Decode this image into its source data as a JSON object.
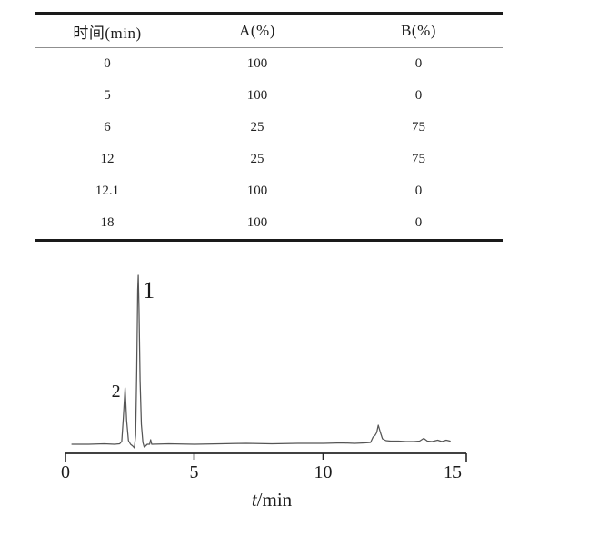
{
  "table": {
    "columns": [
      "时间(min)",
      "A(%)",
      "B(%)"
    ],
    "rows": [
      [
        "0",
        "100",
        "0"
      ],
      [
        "5",
        "100",
        "0"
      ],
      [
        "6",
        "25",
        "75"
      ],
      [
        "12",
        "25",
        "75"
      ],
      [
        "12.1",
        "100",
        "0"
      ],
      [
        "18",
        "100",
        "0"
      ]
    ]
  },
  "chart_data": {
    "type": "line",
    "title": "",
    "xlabel": "t/min",
    "xlabel_italic": "t",
    "xlabel_rest": "/min",
    "ylabel": "",
    "xlim": [
      0,
      15
    ],
    "grid": false,
    "x_ticks": [
      0,
      5,
      10,
      15
    ],
    "x_tick_labels": [
      "0",
      "5",
      "10",
      "15"
    ],
    "peaks": [
      {
        "label": "1",
        "t": 2.82,
        "height": 186
      },
      {
        "label": "2",
        "t": 2.31,
        "height": 62
      }
    ],
    "trace": [
      [
        0.25,
        0
      ],
      [
        0.9,
        0
      ],
      [
        1.5,
        0.5
      ],
      [
        1.9,
        0
      ],
      [
        2.1,
        0.5
      ],
      [
        2.18,
        3
      ],
      [
        2.24,
        28
      ],
      [
        2.31,
        62
      ],
      [
        2.37,
        26
      ],
      [
        2.44,
        4
      ],
      [
        2.52,
        0
      ],
      [
        2.61,
        -2
      ],
      [
        2.67,
        -4
      ],
      [
        2.72,
        10
      ],
      [
        2.76,
        80
      ],
      [
        2.8,
        170
      ],
      [
        2.82,
        186
      ],
      [
        2.85,
        150
      ],
      [
        2.89,
        70
      ],
      [
        2.94,
        22
      ],
      [
        3.0,
        2
      ],
      [
        3.05,
        -3
      ],
      [
        3.1,
        -2
      ],
      [
        3.17,
        0
      ],
      [
        3.26,
        0
      ],
      [
        3.3,
        5
      ],
      [
        3.34,
        0
      ],
      [
        4.0,
        0.5
      ],
      [
        5.0,
        0
      ],
      [
        6.0,
        0.5
      ],
      [
        7.0,
        1
      ],
      [
        8.0,
        0.5
      ],
      [
        9.0,
        1
      ],
      [
        10.0,
        1
      ],
      [
        10.7,
        1.5
      ],
      [
        11.2,
        1
      ],
      [
        11.6,
        1.5
      ],
      [
        11.82,
        2
      ],
      [
        11.92,
        8
      ],
      [
        12.0,
        10
      ],
      [
        12.06,
        13
      ],
      [
        12.12,
        21
      ],
      [
        12.2,
        13
      ],
      [
        12.28,
        6
      ],
      [
        12.42,
        4
      ],
      [
        12.6,
        3.5
      ],
      [
        12.9,
        3.5
      ],
      [
        13.2,
        3
      ],
      [
        13.5,
        3
      ],
      [
        13.72,
        3.5
      ],
      [
        13.88,
        6.5
      ],
      [
        14.02,
        3.5
      ],
      [
        14.2,
        3
      ],
      [
        14.42,
        4.5
      ],
      [
        14.58,
        3
      ],
      [
        14.75,
        4.5
      ],
      [
        14.9,
        3.5
      ]
    ]
  }
}
